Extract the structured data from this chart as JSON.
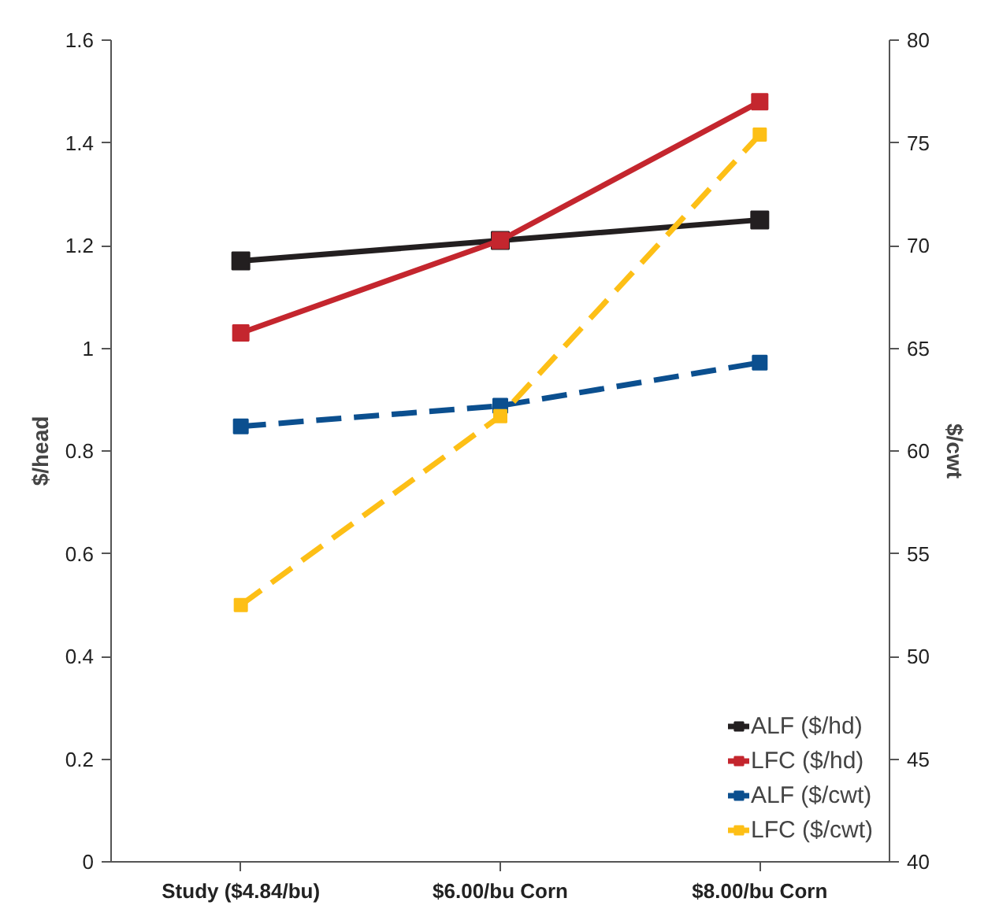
{
  "chart_data": {
    "type": "line",
    "categories": [
      "Study ($4.84/bu)",
      "$6.00/bu Corn",
      "$8.00/bu Corn"
    ],
    "ylabel": "$/head",
    "y2label": "$/cwt",
    "ylim": [
      0,
      1.6
    ],
    "yticks": [
      0,
      0.2,
      0.4,
      0.6,
      0.8,
      1,
      1.2,
      1.4,
      1.6
    ],
    "y2lim": [
      40,
      80
    ],
    "y2ticks": [
      40,
      45,
      50,
      55,
      60,
      65,
      70,
      75,
      80
    ],
    "marker": "square",
    "grid": false,
    "legend": "bottom right",
    "series": [
      {
        "name": "ALF ($/hd)",
        "color": "#231f20",
        "values": [
          1.17,
          1.21,
          1.25
        ],
        "line_style": "solid"
      },
      {
        "name": "LFC ($/hd)",
        "color": "#c4262e",
        "values": [
          1.03,
          1.21,
          1.48
        ],
        "line_style": "solid"
      },
      {
        "name": "ALF ($/cwt)",
        "color": "#0b4f8f",
        "values": [
          61.2,
          62.2,
          64.3
        ],
        "axis": "y2",
        "line_style": "dashed"
      },
      {
        "name": "LFC ($/cwt)",
        "color": "#fdbf16",
        "values": [
          52.5,
          61.7,
          75.4
        ],
        "axis": "y2",
        "line_style": "dashed"
      }
    ]
  }
}
